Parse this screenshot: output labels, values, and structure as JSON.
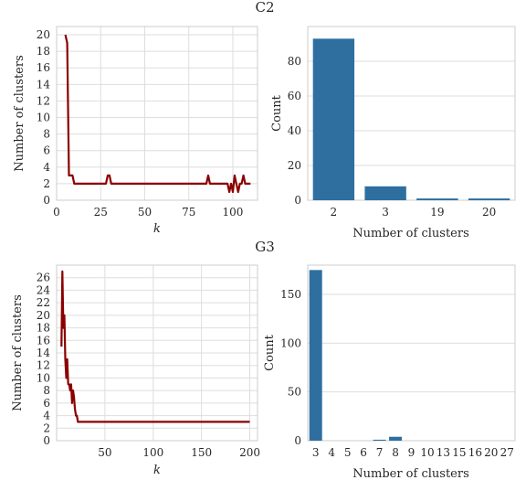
{
  "figure": {
    "titles": [
      "C2",
      "G3"
    ]
  },
  "chart_data": [
    {
      "type": "line",
      "group": "C2",
      "title": "",
      "xlabel": "k",
      "ylabel": "Number of clusters",
      "xlim": [
        0,
        114
      ],
      "ylim": [
        0,
        21
      ],
      "xticks": [
        0,
        25,
        50,
        75,
        100
      ],
      "yticks": [
        0,
        2,
        4,
        6,
        8,
        10,
        12,
        14,
        16,
        18,
        20
      ],
      "color": "#8b0000",
      "grid": true,
      "x": [
        5,
        6,
        7,
        8,
        9,
        10,
        28,
        29,
        30,
        31,
        85,
        86,
        87,
        97,
        98,
        99,
        100,
        101,
        102,
        103,
        104,
        105,
        106,
        107,
        108,
        109,
        110
      ],
      "y": [
        20,
        19,
        3,
        3,
        3,
        2,
        2,
        3,
        3,
        2,
        2,
        3,
        2,
        2,
        1,
        2,
        1,
        3,
        2,
        1,
        2,
        2,
        3,
        2,
        2,
        2,
        2
      ]
    },
    {
      "type": "bar",
      "group": "C2",
      "title": "",
      "xlabel": "Number of clusters",
      "ylabel": "Count",
      "categories": [
        "2",
        "3",
        "19",
        "20"
      ],
      "values": [
        93,
        8,
        1,
        1
      ],
      "ylim": [
        0,
        100
      ],
      "yticks": [
        0,
        20,
        40,
        60,
        80
      ],
      "color": "#2e6fa0",
      "grid": true
    },
    {
      "type": "line",
      "group": "G3",
      "title": "",
      "xlabel": "k",
      "ylabel": "Number of clusters",
      "xlim": [
        0,
        208
      ],
      "ylim": [
        0,
        28
      ],
      "xticks": [
        50,
        100,
        150,
        200
      ],
      "yticks": [
        0,
        2,
        4,
        6,
        8,
        10,
        12,
        14,
        16,
        18,
        20,
        22,
        24,
        26
      ],
      "color": "#8b0000",
      "grid": true,
      "x": [
        5,
        6,
        7,
        8,
        9,
        10,
        11,
        12,
        13,
        14,
        15,
        16,
        17,
        18,
        19,
        20,
        21,
        22,
        23,
        24,
        30,
        50,
        100,
        150,
        200
      ],
      "y": [
        15,
        27,
        18,
        20,
        13,
        10,
        13,
        9,
        9,
        8,
        9,
        6,
        8,
        7,
        5,
        4,
        4,
        3,
        3,
        3,
        3,
        3,
        3,
        3,
        3
      ]
    },
    {
      "type": "bar",
      "group": "G3",
      "title": "",
      "xlabel": "Number of clusters",
      "ylabel": "Count",
      "categories": [
        "3",
        "4",
        "5",
        "6",
        "7",
        "8",
        "9",
        "10",
        "13",
        "15",
        "16",
        "20",
        "27"
      ],
      "values": [
        175,
        0,
        0,
        0,
        1,
        4,
        0,
        0,
        0,
        0,
        0,
        0,
        0
      ],
      "ylim": [
        0,
        180
      ],
      "yticks": [
        0,
        50,
        100,
        150
      ],
      "color": "#2e6fa0",
      "grid": true
    }
  ]
}
